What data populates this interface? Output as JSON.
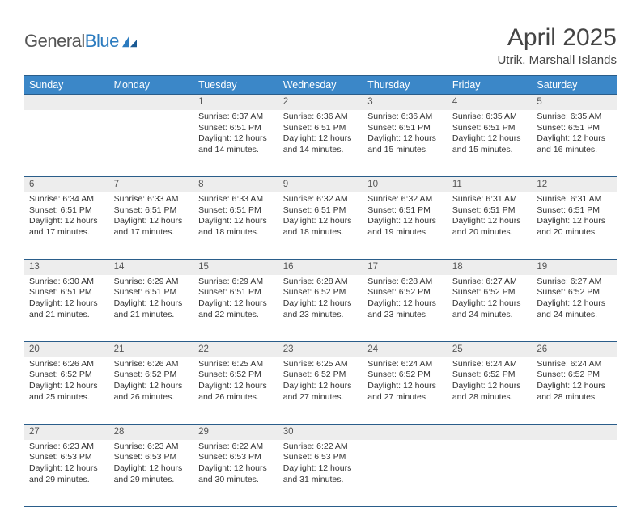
{
  "brand": {
    "name_a": "General",
    "name_b": "Blue"
  },
  "title": "April 2025",
  "location": "Utrik, Marshall Islands",
  "colors": {
    "header_bg": "#3b87c8",
    "header_text": "#ffffff",
    "border": "#2a5d8a",
    "daynum_bg": "#ededed",
    "body_text": "#333333",
    "logo_gray": "#555555",
    "logo_blue": "#2b7bbf"
  },
  "weekdays": [
    "Sunday",
    "Monday",
    "Tuesday",
    "Wednesday",
    "Thursday",
    "Friday",
    "Saturday"
  ],
  "weeks": [
    [
      null,
      null,
      {
        "n": "1",
        "sr": "Sunrise: 6:37 AM",
        "ss": "Sunset: 6:51 PM",
        "d1": "Daylight: 12 hours",
        "d2": "and 14 minutes."
      },
      {
        "n": "2",
        "sr": "Sunrise: 6:36 AM",
        "ss": "Sunset: 6:51 PM",
        "d1": "Daylight: 12 hours",
        "d2": "and 14 minutes."
      },
      {
        "n": "3",
        "sr": "Sunrise: 6:36 AM",
        "ss": "Sunset: 6:51 PM",
        "d1": "Daylight: 12 hours",
        "d2": "and 15 minutes."
      },
      {
        "n": "4",
        "sr": "Sunrise: 6:35 AM",
        "ss": "Sunset: 6:51 PM",
        "d1": "Daylight: 12 hours",
        "d2": "and 15 minutes."
      },
      {
        "n": "5",
        "sr": "Sunrise: 6:35 AM",
        "ss": "Sunset: 6:51 PM",
        "d1": "Daylight: 12 hours",
        "d2": "and 16 minutes."
      }
    ],
    [
      {
        "n": "6",
        "sr": "Sunrise: 6:34 AM",
        "ss": "Sunset: 6:51 PM",
        "d1": "Daylight: 12 hours",
        "d2": "and 17 minutes."
      },
      {
        "n": "7",
        "sr": "Sunrise: 6:33 AM",
        "ss": "Sunset: 6:51 PM",
        "d1": "Daylight: 12 hours",
        "d2": "and 17 minutes."
      },
      {
        "n": "8",
        "sr": "Sunrise: 6:33 AM",
        "ss": "Sunset: 6:51 PM",
        "d1": "Daylight: 12 hours",
        "d2": "and 18 minutes."
      },
      {
        "n": "9",
        "sr": "Sunrise: 6:32 AM",
        "ss": "Sunset: 6:51 PM",
        "d1": "Daylight: 12 hours",
        "d2": "and 18 minutes."
      },
      {
        "n": "10",
        "sr": "Sunrise: 6:32 AM",
        "ss": "Sunset: 6:51 PM",
        "d1": "Daylight: 12 hours",
        "d2": "and 19 minutes."
      },
      {
        "n": "11",
        "sr": "Sunrise: 6:31 AM",
        "ss": "Sunset: 6:51 PM",
        "d1": "Daylight: 12 hours",
        "d2": "and 20 minutes."
      },
      {
        "n": "12",
        "sr": "Sunrise: 6:31 AM",
        "ss": "Sunset: 6:51 PM",
        "d1": "Daylight: 12 hours",
        "d2": "and 20 minutes."
      }
    ],
    [
      {
        "n": "13",
        "sr": "Sunrise: 6:30 AM",
        "ss": "Sunset: 6:51 PM",
        "d1": "Daylight: 12 hours",
        "d2": "and 21 minutes."
      },
      {
        "n": "14",
        "sr": "Sunrise: 6:29 AM",
        "ss": "Sunset: 6:51 PM",
        "d1": "Daylight: 12 hours",
        "d2": "and 21 minutes."
      },
      {
        "n": "15",
        "sr": "Sunrise: 6:29 AM",
        "ss": "Sunset: 6:51 PM",
        "d1": "Daylight: 12 hours",
        "d2": "and 22 minutes."
      },
      {
        "n": "16",
        "sr": "Sunrise: 6:28 AM",
        "ss": "Sunset: 6:52 PM",
        "d1": "Daylight: 12 hours",
        "d2": "and 23 minutes."
      },
      {
        "n": "17",
        "sr": "Sunrise: 6:28 AM",
        "ss": "Sunset: 6:52 PM",
        "d1": "Daylight: 12 hours",
        "d2": "and 23 minutes."
      },
      {
        "n": "18",
        "sr": "Sunrise: 6:27 AM",
        "ss": "Sunset: 6:52 PM",
        "d1": "Daylight: 12 hours",
        "d2": "and 24 minutes."
      },
      {
        "n": "19",
        "sr": "Sunrise: 6:27 AM",
        "ss": "Sunset: 6:52 PM",
        "d1": "Daylight: 12 hours",
        "d2": "and 24 minutes."
      }
    ],
    [
      {
        "n": "20",
        "sr": "Sunrise: 6:26 AM",
        "ss": "Sunset: 6:52 PM",
        "d1": "Daylight: 12 hours",
        "d2": "and 25 minutes."
      },
      {
        "n": "21",
        "sr": "Sunrise: 6:26 AM",
        "ss": "Sunset: 6:52 PM",
        "d1": "Daylight: 12 hours",
        "d2": "and 26 minutes."
      },
      {
        "n": "22",
        "sr": "Sunrise: 6:25 AM",
        "ss": "Sunset: 6:52 PM",
        "d1": "Daylight: 12 hours",
        "d2": "and 26 minutes."
      },
      {
        "n": "23",
        "sr": "Sunrise: 6:25 AM",
        "ss": "Sunset: 6:52 PM",
        "d1": "Daylight: 12 hours",
        "d2": "and 27 minutes."
      },
      {
        "n": "24",
        "sr": "Sunrise: 6:24 AM",
        "ss": "Sunset: 6:52 PM",
        "d1": "Daylight: 12 hours",
        "d2": "and 27 minutes."
      },
      {
        "n": "25",
        "sr": "Sunrise: 6:24 AM",
        "ss": "Sunset: 6:52 PM",
        "d1": "Daylight: 12 hours",
        "d2": "and 28 minutes."
      },
      {
        "n": "26",
        "sr": "Sunrise: 6:24 AM",
        "ss": "Sunset: 6:52 PM",
        "d1": "Daylight: 12 hours",
        "d2": "and 28 minutes."
      }
    ],
    [
      {
        "n": "27",
        "sr": "Sunrise: 6:23 AM",
        "ss": "Sunset: 6:53 PM",
        "d1": "Daylight: 12 hours",
        "d2": "and 29 minutes."
      },
      {
        "n": "28",
        "sr": "Sunrise: 6:23 AM",
        "ss": "Sunset: 6:53 PM",
        "d1": "Daylight: 12 hours",
        "d2": "and 29 minutes."
      },
      {
        "n": "29",
        "sr": "Sunrise: 6:22 AM",
        "ss": "Sunset: 6:53 PM",
        "d1": "Daylight: 12 hours",
        "d2": "and 30 minutes."
      },
      {
        "n": "30",
        "sr": "Sunrise: 6:22 AM",
        "ss": "Sunset: 6:53 PM",
        "d1": "Daylight: 12 hours",
        "d2": "and 31 minutes."
      },
      null,
      null,
      null
    ]
  ]
}
